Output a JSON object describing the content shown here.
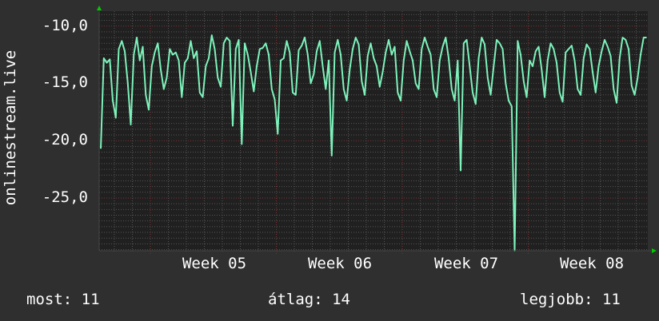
{
  "chart_data": {
    "type": "line",
    "ylabel": "onlinestream.live",
    "ylim": [
      -29.6,
      -8.7
    ],
    "yticks": [
      {
        "value": -10,
        "label": "-10,0"
      },
      {
        "value": -15,
        "label": "-15,0"
      },
      {
        "value": -20,
        "label": "-20,0"
      },
      {
        "value": -25,
        "label": "-25,0"
      }
    ],
    "xticks": [
      "Week 05",
      "Week 06",
      "Week 07",
      "Week 08"
    ],
    "grid": true,
    "colors": {
      "background": "#2f2f2f",
      "plot": "#202020",
      "line": "#7df2bb",
      "major_grid": "#7a3333",
      "minor_grid": "#555555",
      "arrow": "#00cc00"
    },
    "series": [
      {
        "values": [
          -20.7,
          -12.8,
          -13.2,
          -12.9,
          -16.5,
          -18.0,
          -12.0,
          -11.3,
          -12.2,
          -15.0,
          -18.6,
          -12.5,
          -11.0,
          -13.0,
          -11.8,
          -16.0,
          -17.3,
          -13.5,
          -12.3,
          -11.5,
          -13.8,
          -15.5,
          -14.5,
          -12.0,
          -12.5,
          -12.3,
          -13.0,
          -16.2,
          -13.2,
          -12.8,
          -11.3,
          -12.8,
          -12.2,
          -15.8,
          -16.2,
          -13.5,
          -12.8,
          -10.8,
          -12.0,
          -14.5,
          -15.3,
          -11.5,
          -11.0,
          -11.3,
          -18.7,
          -12.0,
          -11.2,
          -20.3,
          -11.5,
          -12.5,
          -14.0,
          -15.7,
          -13.5,
          -12.0,
          -11.9,
          -11.5,
          -12.5,
          -15.5,
          -16.4,
          -19.4,
          -13.0,
          -12.8,
          -11.3,
          -12.3,
          -15.8,
          -16.0,
          -12.1,
          -11.7,
          -11.0,
          -12.5,
          -15.0,
          -14.2,
          -12.2,
          -11.3,
          -13.5,
          -15.5,
          -13.0,
          -21.3,
          -12.3,
          -11.2,
          -12.5,
          -15.5,
          -16.5,
          -13.8,
          -12.0,
          -11.0,
          -11.6,
          -14.8,
          -16.0,
          -12.6,
          -11.5,
          -12.8,
          -13.5,
          -15.3,
          -14.0,
          -12.3,
          -11.2,
          -12.5,
          -11.8,
          -15.8,
          -16.5,
          -13.0,
          -11.3,
          -12.2,
          -13.0,
          -15.0,
          -15.5,
          -12.0,
          -11.0,
          -11.8,
          -12.5,
          -15.5,
          -16.2,
          -13.0,
          -11.8,
          -11.0,
          -12.8,
          -15.5,
          -16.5,
          -13.0,
          -22.6,
          -11.5,
          -11.2,
          -13.5,
          -15.8,
          -16.8,
          -12.8,
          -11.0,
          -11.6,
          -14.5,
          -16.0,
          -13.5,
          -11.2,
          -11.5,
          -12.0,
          -15.0,
          -16.5,
          -17.0,
          -29.6,
          -11.3,
          -12.5,
          -14.8,
          -16.2,
          -13.0,
          -13.5,
          -12.2,
          -11.8,
          -13.8,
          -16.2,
          -13.0,
          -11.5,
          -12.0,
          -13.2,
          -15.8,
          -16.6,
          -12.3,
          -12.0,
          -11.7,
          -13.0,
          -15.5,
          -16.0,
          -12.8,
          -11.6,
          -12.0,
          -14.0,
          -15.8,
          -13.5,
          -12.2,
          -11.2,
          -11.8,
          -12.6,
          -15.5,
          -16.7,
          -12.8,
          -11.0,
          -11.2,
          -12.0,
          -15.2,
          -16.0,
          -14.5,
          -12.5,
          -11.0,
          -11.0
        ]
      }
    ]
  },
  "legend": {
    "current": "most: 11",
    "average": "átlag: 14",
    "best": "legjobb: 11"
  }
}
